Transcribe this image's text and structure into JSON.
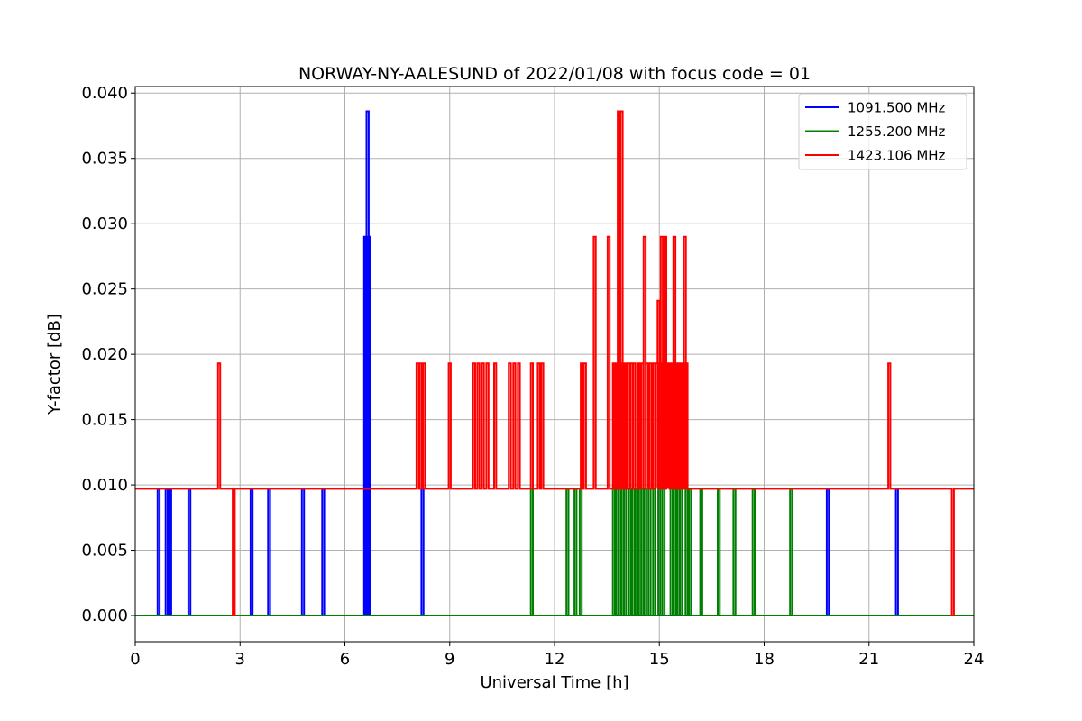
{
  "chart_data": {
    "type": "line",
    "title": "NORWAY-NY-AALESUND of 2022/01/08 with focus code = 01",
    "xlabel": "Universal Time [h]",
    "ylabel": "Y-factor [dB]",
    "xlim": [
      0,
      24
    ],
    "ylim": [
      -0.002,
      0.0405
    ],
    "xticks": [
      0,
      3,
      6,
      9,
      12,
      15,
      18,
      21,
      24
    ],
    "xtick_labels": [
      "0",
      "3",
      "6",
      "9",
      "12",
      "15",
      "18",
      "21",
      "24"
    ],
    "yticks": [
      0.0,
      0.005,
      0.01,
      0.015,
      0.02,
      0.025,
      0.03,
      0.035,
      0.04
    ],
    "ytick_labels": [
      "0.000",
      "0.005",
      "0.010",
      "0.015",
      "0.020",
      "0.025",
      "0.030",
      "0.035",
      "0.040"
    ],
    "grid": true,
    "legend_position": "top-right",
    "series": [
      {
        "name": "1091.500 MHz",
        "color": "#0000ff",
        "baseline": 0.0,
        "spikes": [
          [
            0.67,
            0.0097
          ],
          [
            0.9,
            0.0097
          ],
          [
            1.0,
            0.0097
          ],
          [
            1.55,
            0.0097
          ],
          [
            3.33,
            0.0097
          ],
          [
            3.83,
            0.0097
          ],
          [
            4.8,
            0.0097
          ],
          [
            5.38,
            0.0097
          ],
          [
            6.58,
            0.029
          ],
          [
            6.62,
            0.029
          ],
          [
            6.65,
            0.0386
          ],
          [
            6.68,
            0.029
          ],
          [
            6.7,
            0.0097
          ],
          [
            8.22,
            0.0097
          ],
          [
            19.82,
            0.0097
          ],
          [
            21.8,
            0.0097
          ]
        ]
      },
      {
        "name": "1255.200 MHz",
        "color": "#008000",
        "baseline": 0.0,
        "spikes": [
          [
            11.35,
            0.0097
          ],
          [
            12.37,
            0.0097
          ],
          [
            12.6,
            0.0097
          ],
          [
            12.75,
            0.0097
          ],
          [
            13.7,
            0.0097
          ],
          [
            13.8,
            0.0097
          ],
          [
            13.88,
            0.0097
          ],
          [
            13.95,
            0.0097
          ],
          [
            14.02,
            0.0097
          ],
          [
            14.15,
            0.0097
          ],
          [
            14.25,
            0.0097
          ],
          [
            14.35,
            0.0097
          ],
          [
            14.45,
            0.0097
          ],
          [
            14.52,
            0.0097
          ],
          [
            14.6,
            0.0097
          ],
          [
            14.72,
            0.0097
          ],
          [
            14.85,
            0.0097
          ],
          [
            15.0,
            0.0097
          ],
          [
            15.12,
            0.0097
          ],
          [
            15.35,
            0.0097
          ],
          [
            15.45,
            0.0097
          ],
          [
            15.55,
            0.0097
          ],
          [
            15.62,
            0.0097
          ],
          [
            15.78,
            0.0097
          ],
          [
            15.88,
            0.0097
          ],
          [
            16.2,
            0.0097
          ],
          [
            16.7,
            0.0097
          ],
          [
            17.15,
            0.0097
          ],
          [
            17.7,
            0.0097
          ],
          [
            18.77,
            0.0097
          ]
        ]
      },
      {
        "name": "1423.106 MHz",
        "color": "#ff0000",
        "baseline": 0.0097,
        "spikes": [
          [
            2.4,
            0.0193
          ],
          [
            2.82,
            0.0
          ],
          [
            8.08,
            0.0193
          ],
          [
            8.17,
            0.0193
          ],
          [
            8.27,
            0.0193
          ],
          [
            9.0,
            0.0193
          ],
          [
            9.7,
            0.0193
          ],
          [
            9.82,
            0.0193
          ],
          [
            9.95,
            0.0193
          ],
          [
            10.08,
            0.0193
          ],
          [
            10.3,
            0.0193
          ],
          [
            10.72,
            0.0193
          ],
          [
            10.85,
            0.0193
          ],
          [
            10.98,
            0.0193
          ],
          [
            11.35,
            0.0193
          ],
          [
            11.55,
            0.0193
          ],
          [
            11.65,
            0.0193
          ],
          [
            12.78,
            0.0193
          ],
          [
            12.87,
            0.0193
          ],
          [
            13.15,
            0.029
          ],
          [
            13.55,
            0.029
          ],
          [
            13.7,
            0.0193
          ],
          [
            13.75,
            0.0193
          ],
          [
            13.8,
            0.0193
          ],
          [
            13.84,
            0.0386
          ],
          [
            13.88,
            0.0193
          ],
          [
            13.92,
            0.0386
          ],
          [
            13.97,
            0.0193
          ],
          [
            14.02,
            0.0193
          ],
          [
            14.12,
            0.0193
          ],
          [
            14.2,
            0.0193
          ],
          [
            14.28,
            0.0193
          ],
          [
            14.4,
            0.0193
          ],
          [
            14.45,
            0.0193
          ],
          [
            14.52,
            0.0193
          ],
          [
            14.58,
            0.029
          ],
          [
            14.65,
            0.0193
          ],
          [
            14.75,
            0.0193
          ],
          [
            14.85,
            0.0193
          ],
          [
            14.92,
            0.0193
          ],
          [
            14.98,
            0.0241
          ],
          [
            15.03,
            0.0193
          ],
          [
            15.07,
            0.029
          ],
          [
            15.12,
            0.0193
          ],
          [
            15.17,
            0.029
          ],
          [
            15.22,
            0.0193
          ],
          [
            15.28,
            0.0193
          ],
          [
            15.32,
            0.0193
          ],
          [
            15.38,
            0.0193
          ],
          [
            15.43,
            0.029
          ],
          [
            15.48,
            0.0193
          ],
          [
            15.53,
            0.0193
          ],
          [
            15.58,
            0.0193
          ],
          [
            15.63,
            0.0193
          ],
          [
            15.68,
            0.0193
          ],
          [
            15.73,
            0.029
          ],
          [
            15.78,
            0.0193
          ],
          [
            21.58,
            0.0193
          ],
          [
            23.4,
            0.0
          ]
        ]
      }
    ]
  }
}
